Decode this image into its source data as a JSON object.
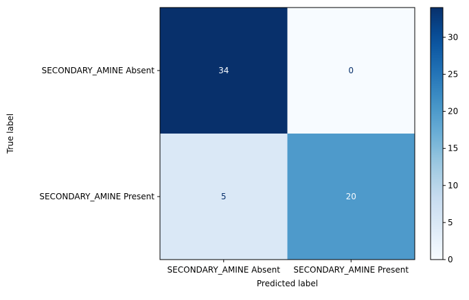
{
  "chart_data": {
    "type": "heatmap",
    "title": "",
    "xlabel": "Predicted label",
    "ylabel": "True label",
    "x_categories": [
      "SECONDARY_AMINE Absent",
      "SECONDARY_AMINE Present"
    ],
    "y_categories": [
      "SECONDARY_AMINE Absent",
      "SECONDARY_AMINE Present"
    ],
    "values": [
      [
        34,
        0
      ],
      [
        5,
        20
      ]
    ],
    "colormap": "Blues",
    "vmin": 0,
    "vmax": 34,
    "colorbar_ticks": [
      0,
      5,
      10,
      15,
      20,
      25,
      30
    ],
    "colors": {
      "dark_text": "#08306b",
      "light_text": "#f7fbff"
    }
  }
}
